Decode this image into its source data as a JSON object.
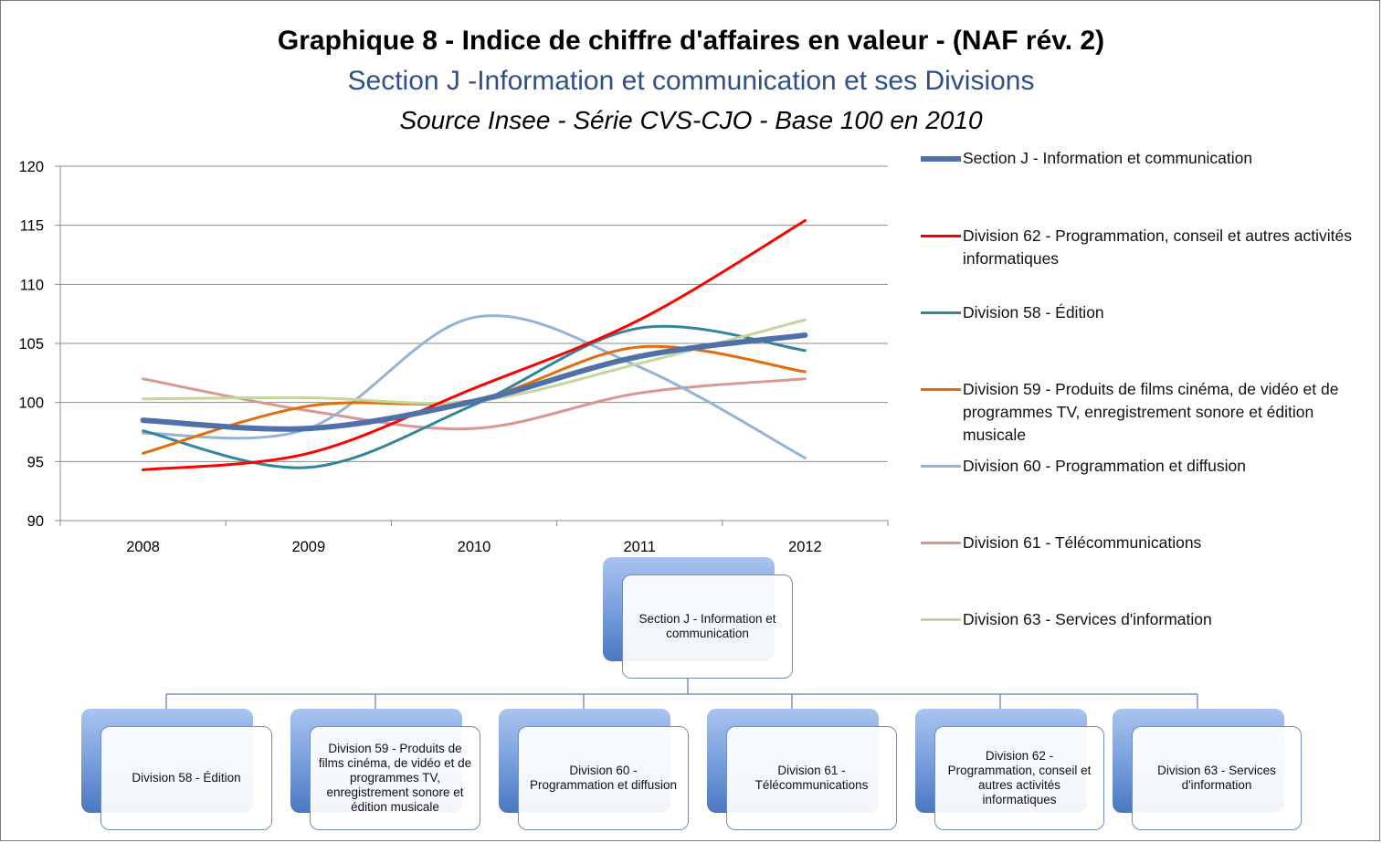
{
  "titles": {
    "main": "Graphique 8 - Indice de chiffre d'affaires en valeur - (NAF rév. 2)",
    "section": "Section J -Information et communication et ses Divisions",
    "source": "Source Insee - Série CVS-CJO - Base 100 en 2010"
  },
  "chart_data": {
    "type": "line",
    "x": [
      "2008",
      "2009",
      "2010",
      "2011",
      "2012"
    ],
    "ylim": [
      90,
      120
    ],
    "yticks": [
      90,
      95,
      100,
      105,
      110,
      115,
      120
    ],
    "grid": true,
    "legend_position": "right",
    "series": [
      {
        "name": "Division 61 - Télécommunications",
        "color": "#d99694",
        "width": 3,
        "values": [
          102.0,
          99.3,
          97.8,
          100.8,
          102.0
        ]
      },
      {
        "name": "Division 60 - Programmation et diffusion",
        "color": "#95b3d7",
        "width": 3,
        "values": [
          97.4,
          97.8,
          107.2,
          103.0,
          95.3
        ]
      },
      {
        "name": "Division 58 - Édition",
        "color": "#31859c",
        "width": 3,
        "values": [
          97.6,
          94.5,
          99.8,
          106.3,
          104.4
        ]
      },
      {
        "name": "Division 59 - Produits de films cinéma, de vidéo et de programmes TV, enregistrement sonore et édition musicale",
        "color": "#e46c0a",
        "width": 3,
        "values": [
          95.7,
          99.7,
          100.2,
          104.7,
          102.6
        ]
      },
      {
        "name": "Division 63 - Services d'information",
        "color": "#c3d69b",
        "width": 3,
        "values": [
          100.3,
          100.4,
          100.1,
          103.3,
          107.0
        ]
      },
      {
        "name": "Division 62 - Programmation, conseil et autres activités informatiques",
        "color": "#ff0000",
        "width": 3,
        "values": [
          94.3,
          95.7,
          101.2,
          107.0,
          115.4
        ]
      },
      {
        "name": "Section J - Information et communication",
        "color": "#4f70a8",
        "width": 6,
        "values": [
          98.5,
          97.8,
          100.1,
          103.9,
          105.7
        ]
      }
    ]
  },
  "legend": [
    {
      "text": "Section J - Information et communication",
      "color": "#4f70a8"
    },
    {
      "text": "Division 62 - Programmation, conseil et autres activités informatiques",
      "color": "#ff0000"
    },
    {
      "text": "Division 58 - Édition",
      "color": "#31859c"
    },
    {
      "text": "Division 59 - Produits de films cinéma, de vidéo et de programmes TV, enregistrement sonore et édition musicale",
      "color": "#e46c0a"
    },
    {
      "text": "Division 60 - Programmation et diffusion",
      "color": "#95b3d7"
    },
    {
      "text": "Division 61 - Télécommunications",
      "color": "#d99694"
    },
    {
      "text": "Division 63 - Services d'information",
      "color": "#c3d69b"
    }
  ],
  "org": {
    "root": "Section J - Information et communication",
    "children": [
      "Division 58 - Édition",
      "Division 59 - Produits de films cinéma, de vidéo et de programmes TV, enregistrement sonore et édition musicale",
      "Division 60 - Programmation et diffusion",
      "Division 61 - Télécommunications",
      "Division 62 - Programmation, conseil et autres activités informatiques",
      "Division 63 - Services d'information"
    ]
  }
}
